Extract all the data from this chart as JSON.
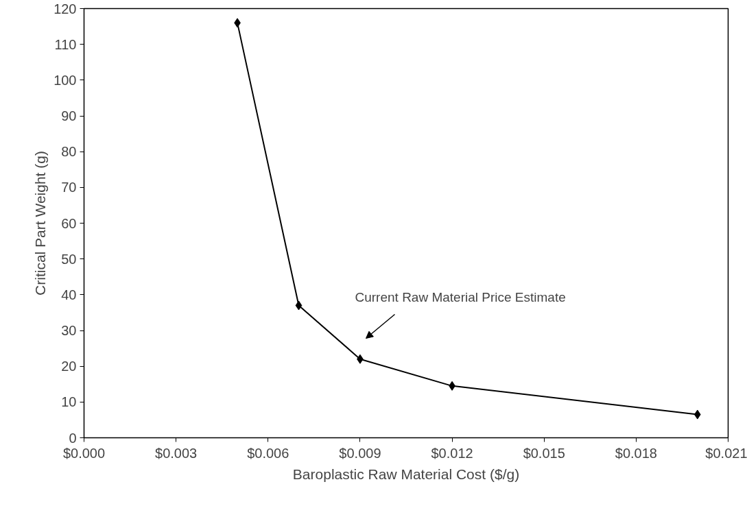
{
  "chart_data": {
    "type": "line",
    "xlabel": "Baroplastic Raw Material Cost ($/g)",
    "ylabel": "Critical Part Weight (g)",
    "x": [
      0.005,
      0.007,
      0.009,
      0.012,
      0.02
    ],
    "series": [
      {
        "color": "#000000",
        "values": [
          116,
          37,
          22,
          14.5,
          6.5
        ]
      }
    ],
    "marker": "diamond",
    "line_style": "solid",
    "grid": false,
    "xlim": [
      0,
      0.021
    ],
    "ylim": [
      0,
      120
    ],
    "xticks": [
      {
        "value": 0,
        "label": "$0.000"
      },
      {
        "value": 0.003,
        "label": "$0.003"
      },
      {
        "value": 0.006,
        "label": "$0.006"
      },
      {
        "value": 0.009,
        "label": "$0.009"
      },
      {
        "value": 0.012,
        "label": "$0.012"
      },
      {
        "value": 0.015,
        "label": "$0.015"
      },
      {
        "value": 0.018,
        "label": "$0.018"
      },
      {
        "value": 0.021,
        "label": "$0.021"
      }
    ],
    "yticks": [
      0,
      10,
      20,
      30,
      40,
      50,
      60,
      70,
      80,
      90,
      100,
      110,
      120
    ],
    "annotations": [
      "Current Raw Material Price Estimate"
    ]
  }
}
